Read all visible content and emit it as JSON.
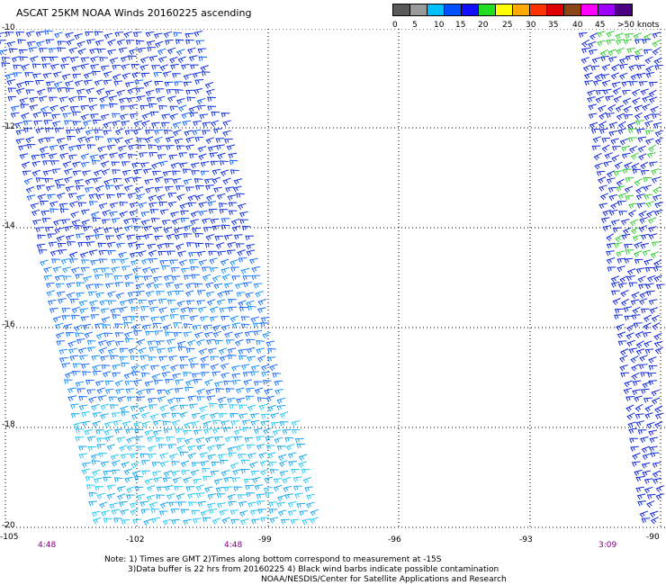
{
  "title": "ASCAT 25KM NOAA Winds 20160225 ascending",
  "scale": {
    "colors": [
      "#595959",
      "#9a9a9a",
      "#00bfff",
      "#0050ff",
      "#1010ff",
      "#22dd22",
      "#ffff00",
      "#ffaa00",
      "#ff3300",
      "#dd0000",
      "#8b4513",
      "#ff00ff",
      "#a000ff",
      "#4b0082"
    ],
    "labels": [
      "0",
      "5",
      "10",
      "15",
      "20",
      "25",
      "30",
      "35",
      "40",
      "45",
      ">50 knots"
    ]
  },
  "axes": {
    "y_labels": [
      "-10",
      "-12",
      "-14",
      "-16",
      "-18",
      "-20"
    ],
    "x_labels": [
      "-105",
      "-102",
      "-99",
      "-96",
      "-93",
      "-90"
    ]
  },
  "times": [
    "4:48",
    "4:48",
    "3:09"
  ],
  "notes": {
    "line1": "Note: 1) Times are GMT 2)Times along bottom correspond to measurement at -15S",
    "line2": "3)Data buffer is 22 hrs from 20160225 4) Black wind barbs indicate possible contamination",
    "line3": "NOAA/NESDIS/Center for Satellite Applications and Research"
  }
}
